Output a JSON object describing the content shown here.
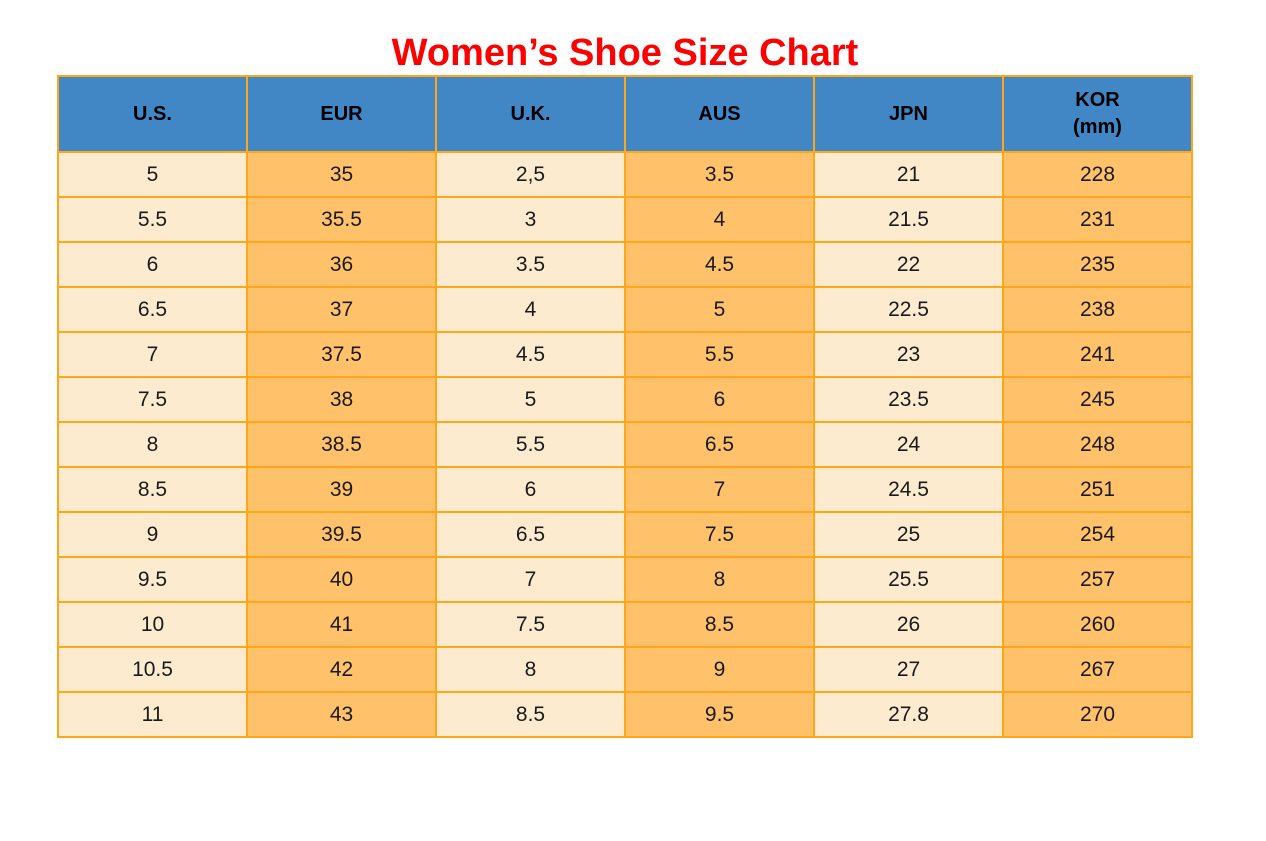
{
  "page": {
    "title": "Women’s Shoe Size Chart"
  },
  "colors": {
    "title_red": "#FF0000",
    "header_blue": "#4287C5",
    "cell_cream": "#FDEBD0",
    "cell_orange": "#FFC26B",
    "border_orange": "#FFA718",
    "text_dark": "#1A1A1A"
  },
  "chart_data": {
    "type": "table",
    "title": "Women’s Shoe Size Chart",
    "columns": [
      {
        "label": "U.S.",
        "sublabel": ""
      },
      {
        "label": "EUR",
        "sublabel": ""
      },
      {
        "label": "U.K.",
        "sublabel": ""
      },
      {
        "label": "AUS",
        "sublabel": ""
      },
      {
        "label": "JPN",
        "sublabel": ""
      },
      {
        "label": "KOR",
        "sublabel": "(mm)"
      }
    ],
    "column_fill_pattern": [
      "cream",
      "orange",
      "cream",
      "orange",
      "cream",
      "orange"
    ],
    "rows": [
      [
        "5",
        "35",
        "2,5",
        "3.5",
        "21",
        "228"
      ],
      [
        "5.5",
        "35.5",
        "3",
        "4",
        "21.5",
        "231"
      ],
      [
        "6",
        "36",
        "3.5",
        "4.5",
        "22",
        "235"
      ],
      [
        "6.5",
        "37",
        "4",
        "5",
        "22.5",
        "238"
      ],
      [
        "7",
        "37.5",
        "4.5",
        "5.5",
        "23",
        "241"
      ],
      [
        "7.5",
        "38",
        "5",
        "6",
        "23.5",
        "245"
      ],
      [
        "8",
        "38.5",
        "5.5",
        "6.5",
        "24",
        "248"
      ],
      [
        "8.5",
        "39",
        "6",
        "7",
        "24.5",
        "251"
      ],
      [
        "9",
        "39.5",
        "6.5",
        "7.5",
        "25",
        "254"
      ],
      [
        "9.5",
        "40",
        "7",
        "8",
        "25.5",
        "257"
      ],
      [
        "10",
        "41",
        "7.5",
        "8.5",
        "26",
        "260"
      ],
      [
        "10.5",
        "42",
        "8",
        "9",
        "27",
        "267"
      ],
      [
        "11",
        "43",
        "8.5",
        "9.5",
        "27.8",
        "270"
      ]
    ]
  }
}
